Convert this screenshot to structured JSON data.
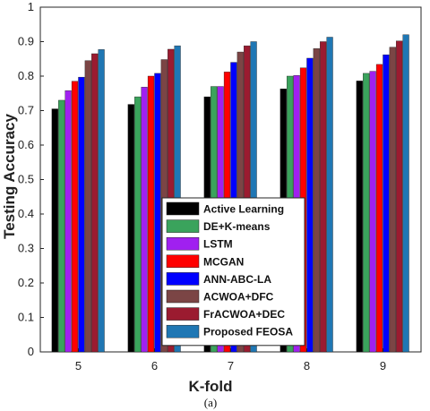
{
  "chart_data": {
    "type": "bar",
    "categories": [
      "5",
      "6",
      "7",
      "8",
      "9"
    ],
    "xlabel": "K-fold",
    "ylabel": "Testing Accuracy",
    "ylim": [
      0,
      1
    ],
    "yticks": [
      "0",
      "0.1",
      "0.2",
      "0.3",
      "0.4",
      "0.5",
      "0.6",
      "0.7",
      "0.8",
      "0.9",
      "1"
    ],
    "grid": false,
    "legend_position": "bottom-center",
    "caption": "(a)",
    "series": [
      {
        "name": "Active Learning",
        "color": "#000000",
        "values": [
          0.705,
          0.718,
          0.74,
          0.763,
          0.786
        ]
      },
      {
        "name": "DE+K-means",
        "color": "#3aa35c",
        "values": [
          0.73,
          0.74,
          0.77,
          0.8,
          0.808
        ]
      },
      {
        "name": "LSTM",
        "color": "#a020f0",
        "values": [
          0.758,
          0.768,
          0.77,
          0.802,
          0.814
        ]
      },
      {
        "name": "MCGAN",
        "color": "#ff0000",
        "values": [
          0.785,
          0.8,
          0.812,
          0.824,
          0.834
        ]
      },
      {
        "name": "ANN-ABC-LA",
        "color": "#0000ff",
        "values": [
          0.797,
          0.808,
          0.84,
          0.852,
          0.862
        ]
      },
      {
        "name": "ACWOA+DFC",
        "color": "#7b4545",
        "values": [
          0.845,
          0.848,
          0.87,
          0.88,
          0.884
        ]
      },
      {
        "name": "FrACWOA+DEC",
        "color": "#9b1b30",
        "values": [
          0.865,
          0.878,
          0.888,
          0.9,
          0.902
        ]
      },
      {
        "name": "Proposed FEOSA",
        "color": "#1f77b4",
        "values": [
          0.877,
          0.888,
          0.9,
          0.913,
          0.92
        ]
      }
    ]
  }
}
